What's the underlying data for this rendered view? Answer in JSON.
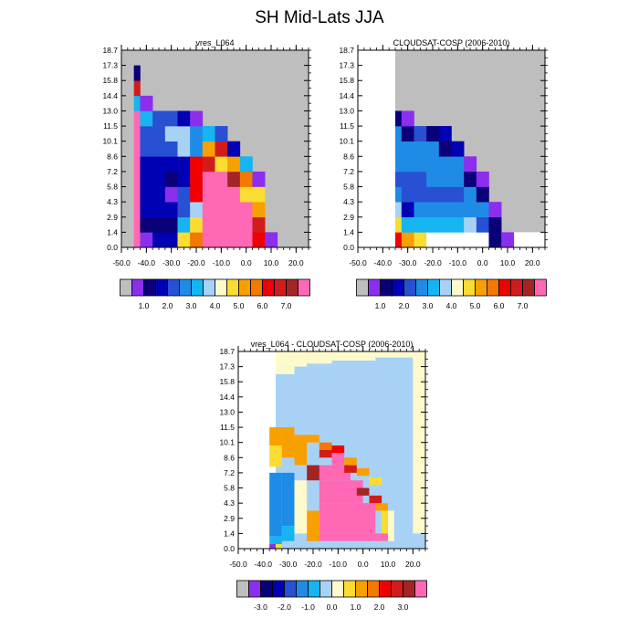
{
  "figure": {
    "title": "SH Mid-Lats JJA"
  },
  "colors": {
    "missing": "#bebebe",
    "abs_palette": [
      "#bebebe",
      "#8c2eed",
      "#0a0078",
      "#0000b4",
      "#2850d2",
      "#1e8ce6",
      "#16b4f0",
      "#a8d2f5",
      "#fffacc",
      "#fadc32",
      "#f8a000",
      "#f57800",
      "#f00000",
      "#d21c1c",
      "#a52424",
      "#ff68b4"
    ],
    "diff_palette": [
      "#bebebe",
      "#8c2eed",
      "#0a0078",
      "#0000b4",
      "#2850d2",
      "#1e8ce6",
      "#16b4f0",
      "#a8d2f5",
      "#fffacc",
      "#fadc32",
      "#f8a000",
      "#f57800",
      "#f00000",
      "#d21c1c",
      "#a52424",
      "#ff68b4"
    ]
  },
  "chart_data": [
    {
      "type": "heatmap",
      "title": "vres_L064",
      "xlabel": "",
      "ylabel": "",
      "xlim": [
        -50,
        25
      ],
      "x_ticks": [
        "-50.0",
        "-40.0",
        "-30.0",
        "-20.0",
        "-10.0",
        "0.0",
        "10.0",
        "20.0"
      ],
      "y_ticks": [
        "0.0",
        "1.4",
        "2.9",
        "4.3",
        "5.8",
        "7.2",
        "8.6",
        "10.1",
        "11.5",
        "13.0",
        "14.4",
        "15.8",
        "17.3",
        "18.7"
      ],
      "x_edges": [
        -45,
        -42.5,
        -37.5,
        -32.5,
        -27.5,
        -22.5,
        -17.5,
        -12.5,
        -7.5,
        -2.5,
        2.5,
        7.5,
        12.5,
        17.5
      ],
      "fill_background": "missing",
      "columns_top_level": [
        12,
        9,
        9,
        9,
        8,
        8,
        8,
        7,
        6,
        5,
        4,
        1
      ],
      "cells": {
        "0": [
          "#ff68b4",
          "#ff68b4",
          "#ff68b4",
          "#ff68b4",
          "#ff68b4",
          "#ff68b4",
          "#ff68b4",
          "#ff68b4",
          "#ff68b4",
          "#16b4f0",
          "#d21c1c",
          "#0a0078"
        ],
        "1": [
          "#8c2eed",
          "#0a0078",
          "#0000b4",
          "#0000b4",
          "#0000b4",
          "#0000b4",
          "#2850d2",
          "#2850d2",
          "#16b4f0",
          "#8c2eed"
        ],
        "2": [
          "#0000b4",
          "#0a0078",
          "#0000b4",
          "#0000b4",
          "#0000b4",
          "#0000b4",
          "#2850d2",
          "#2850d2",
          "#2850d2"
        ],
        "3": [
          "#0000b4",
          "#0a0078",
          "#0000b4",
          "#8c2eed",
          "#0a0078",
          "#0000b4",
          "#2850d2",
          "#a8d2f5",
          "#2850d2"
        ],
        "4": [
          "#fadc32",
          "#16b4f0",
          "#2850d2",
          "#2850d2",
          "#0000b4",
          "#0000b4",
          "#a8d2f5",
          "#a8d2f5",
          "#0000b4"
        ],
        "5": [
          "#f57800",
          "#fadc32",
          "#a8d2f5",
          "#f00000",
          "#f00000",
          "#f00000",
          "#1e8ce6",
          "#1e8ce6",
          "#8c2eed"
        ],
        "6": [
          "#ff68b4",
          "#ff68b4",
          "#ff68b4",
          "#ff68b4",
          "#ff68b4",
          "#d21c1c",
          "#f8a000",
          "#16b4f0"
        ],
        "7": [
          "#ff68b4",
          "#ff68b4",
          "#ff68b4",
          "#ff68b4",
          "#ff68b4",
          "#fadc32",
          "#d21c1c",
          "#2850d2"
        ],
        "8": [
          "#ff68b4",
          "#ff68b4",
          "#ff68b4",
          "#ff68b4",
          "#a52424",
          "#f8a000",
          "#0000b4"
        ],
        "9": [
          "#ff68b4",
          "#ff68b4",
          "#ff68b4",
          "#fadc32",
          "#f57800",
          "#16b4f0"
        ],
        "10": [
          "#f00000",
          "#d21c1c",
          "#f8a000",
          "#fadc32",
          "#8c2eed"
        ],
        "11": [
          "#8c2eed"
        ]
      },
      "colorbar": {
        "labels": [
          "1.0",
          "2.0",
          "3.0",
          "4.0",
          "5.0",
          "6.0",
          "7.0"
        ]
      }
    },
    {
      "type": "heatmap",
      "title": "CLOUDSAT-COSP (2006-2010)",
      "xlabel": "",
      "ylabel": "",
      "xlim": [
        -50,
        25
      ],
      "x_ticks": [
        "-50.0",
        "-40.0",
        "-30.0",
        "-20.0",
        "-10.0",
        "0.0",
        "10.0",
        "20.0"
      ],
      "y_ticks": [
        "0.0",
        "1.4",
        "2.9",
        "4.3",
        "5.8",
        "7.2",
        "8.6",
        "10.1",
        "11.5",
        "13.0",
        "14.4",
        "15.8",
        "17.3",
        "18.7"
      ],
      "x_edges": [
        -35,
        -32.5,
        -27.5,
        -22.5,
        -17.5,
        -12.5,
        -7.5,
        -2.5,
        2.5,
        7.5,
        12.5,
        17.5
      ],
      "fill_background": "missing",
      "white_region": {
        "x_max": -35,
        "y_bottom_level": 1
      },
      "columns_top_level": [
        9,
        9,
        8,
        8,
        8,
        7,
        6,
        5,
        4,
        1
      ],
      "cells": {
        "0": [
          "#f00000",
          "#fadc32",
          "#a8d2f5",
          "#1e8ce6",
          "#2850d2",
          "#1e8ce6",
          "#1e8ce6",
          "#1e8ce6",
          "#0a0078"
        ],
        "1": [
          "#f8a000",
          "#16b4f0",
          "#0000b4",
          "#2850d2",
          "#2850d2",
          "#1e8ce6",
          "#1e8ce6",
          "#0a0078",
          "#8c2eed"
        ],
        "2": [
          "#fadc32",
          "#16b4f0",
          "#1e8ce6",
          "#2850d2",
          "#2850d2",
          "#1e8ce6",
          "#1e8ce6",
          "#2850d2"
        ],
        "3": [
          "#ffffff",
          "#16b4f0",
          "#1e8ce6",
          "#2850d2",
          "#1e8ce6",
          "#1e8ce6",
          "#1e8ce6",
          "#0a0078"
        ],
        "4": [
          "#ffffff",
          "#16b4f0",
          "#1e8ce6",
          "#2850d2",
          "#1e8ce6",
          "#1e8ce6",
          "#0a0078",
          "#0000b4"
        ],
        "5": [
          "#ffffff",
          "#16b4f0",
          "#1e8ce6",
          "#2850d2",
          "#1e8ce6",
          "#1e8ce6",
          "#0000b4"
        ],
        "6": [
          "#ffffff",
          "#a8d2f5",
          "#1e8ce6",
          "#1e8ce6",
          "#0a0078",
          "#8c2eed"
        ],
        "7": [
          "#ffffff",
          "#2850d2",
          "#1e8ce6",
          "#0a0078",
          "#8c2eed"
        ],
        "8": [
          "#0a0078",
          "#0a0078",
          "#8c2eed"
        ],
        "9": [
          "#8c2eed"
        ]
      },
      "colorbar": {
        "labels": [
          "1.0",
          "2.0",
          "3.0",
          "4.0",
          "5.0",
          "6.0",
          "7.0"
        ]
      }
    },
    {
      "type": "heatmap",
      "title": "vres_L064 - CLOUDSAT-COSP (2006-2010)",
      "xlabel": "",
      "ylabel": "",
      "xlim": [
        -50,
        25
      ],
      "x_ticks": [
        "-50.0",
        "-40.0",
        "-30.0",
        "-20.0",
        "-10.0",
        "0.0",
        "10.0",
        "20.0"
      ],
      "y_ticks": [
        "0.0",
        "1.4",
        "2.9",
        "4.3",
        "5.8",
        "7.2",
        "8.6",
        "10.1",
        "11.5",
        "13.0",
        "14.4",
        "15.8",
        "17.3",
        "18.7"
      ],
      "fill_background": "#a8d2f5",
      "white_region": {
        "x_max": -35
      },
      "colorbar": {
        "labels": [
          "-3.0",
          "-2.0",
          "-1.0",
          "0.0",
          "1.0",
          "2.0",
          "3.0"
        ]
      }
    }
  ]
}
